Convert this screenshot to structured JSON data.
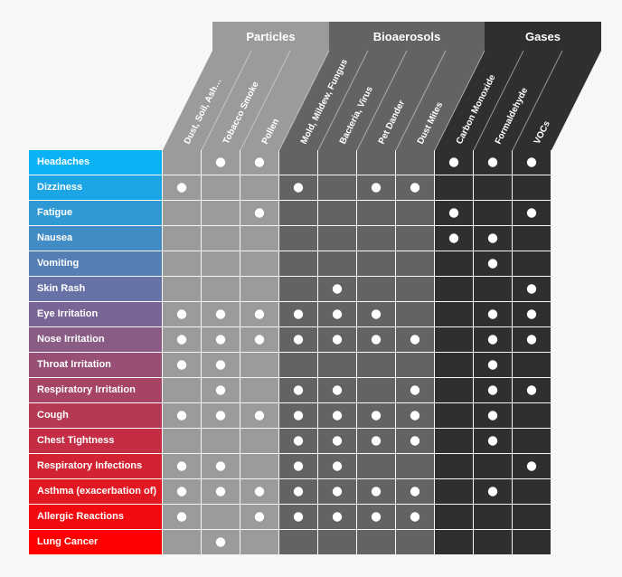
{
  "chart_data": {
    "type": "table",
    "groups": [
      {
        "label": "Particles",
        "columns": [
          0,
          1,
          2
        ],
        "color": "#9b9b9b"
      },
      {
        "label": "Bioaerosols",
        "columns": [
          3,
          4,
          5,
          6
        ],
        "color": "#636363"
      },
      {
        "label": "Gases",
        "columns": [
          7,
          8,
          9
        ],
        "color": "#2f2f2f"
      }
    ],
    "columns": [
      "Dust, Soil, Ash…",
      "Tobacco Smoke",
      "Pollen",
      "Mold, Mildew, Fungus",
      "Bacteria, Virus",
      "Pet Dander",
      "Dust Mites",
      "Carbon Monoxide",
      "Formaldehyde",
      "VOCs"
    ],
    "rows": [
      {
        "label": "Headaches",
        "marks": [
          0,
          1,
          1,
          0,
          0,
          0,
          0,
          1,
          1,
          1
        ]
      },
      {
        "label": "Dizziness",
        "marks": [
          1,
          0,
          0,
          1,
          0,
          1,
          1,
          0,
          0,
          0
        ]
      },
      {
        "label": "Fatigue",
        "marks": [
          0,
          0,
          1,
          0,
          0,
          0,
          0,
          1,
          0,
          1
        ]
      },
      {
        "label": "Nausea",
        "marks": [
          0,
          0,
          0,
          0,
          0,
          0,
          0,
          1,
          1,
          0
        ]
      },
      {
        "label": "Vomiting",
        "marks": [
          0,
          0,
          0,
          0,
          0,
          0,
          0,
          0,
          1,
          0
        ]
      },
      {
        "label": "Skin Rash",
        "marks": [
          0,
          0,
          0,
          0,
          1,
          0,
          0,
          0,
          0,
          1
        ]
      },
      {
        "label": "Eye Irritation",
        "marks": [
          1,
          1,
          1,
          1,
          1,
          1,
          0,
          0,
          1,
          1
        ]
      },
      {
        "label": "Nose Irritation",
        "marks": [
          1,
          1,
          1,
          1,
          1,
          1,
          1,
          0,
          1,
          1
        ]
      },
      {
        "label": "Throat Irritation",
        "marks": [
          1,
          1,
          0,
          0,
          0,
          0,
          0,
          0,
          1,
          0
        ]
      },
      {
        "label": "Respiratory Irritation",
        "marks": [
          0,
          1,
          0,
          1,
          1,
          0,
          1,
          0,
          1,
          1
        ]
      },
      {
        "label": "Cough",
        "marks": [
          1,
          1,
          1,
          1,
          1,
          1,
          1,
          0,
          1,
          0
        ]
      },
      {
        "label": "Chest Tightness",
        "marks": [
          0,
          0,
          0,
          1,
          1,
          1,
          1,
          0,
          1,
          0
        ]
      },
      {
        "label": "Respiratory Infections",
        "marks": [
          1,
          1,
          0,
          1,
          1,
          0,
          0,
          0,
          0,
          1
        ]
      },
      {
        "label": "Asthma (exacerbation of)",
        "marks": [
          1,
          1,
          1,
          1,
          1,
          1,
          1,
          0,
          1,
          0
        ]
      },
      {
        "label": "Allergic Reactions",
        "marks": [
          1,
          0,
          1,
          1,
          1,
          1,
          1,
          0,
          0,
          0
        ]
      },
      {
        "label": "Lung Cancer",
        "marks": [
          0,
          1,
          0,
          0,
          0,
          0,
          0,
          0,
          0,
          0
        ]
      }
    ],
    "row_colors": [
      "#09b2f3",
      "#ff0000"
    ],
    "mark_color": "#ffffff",
    "divider_color": "#e8e8e8"
  }
}
